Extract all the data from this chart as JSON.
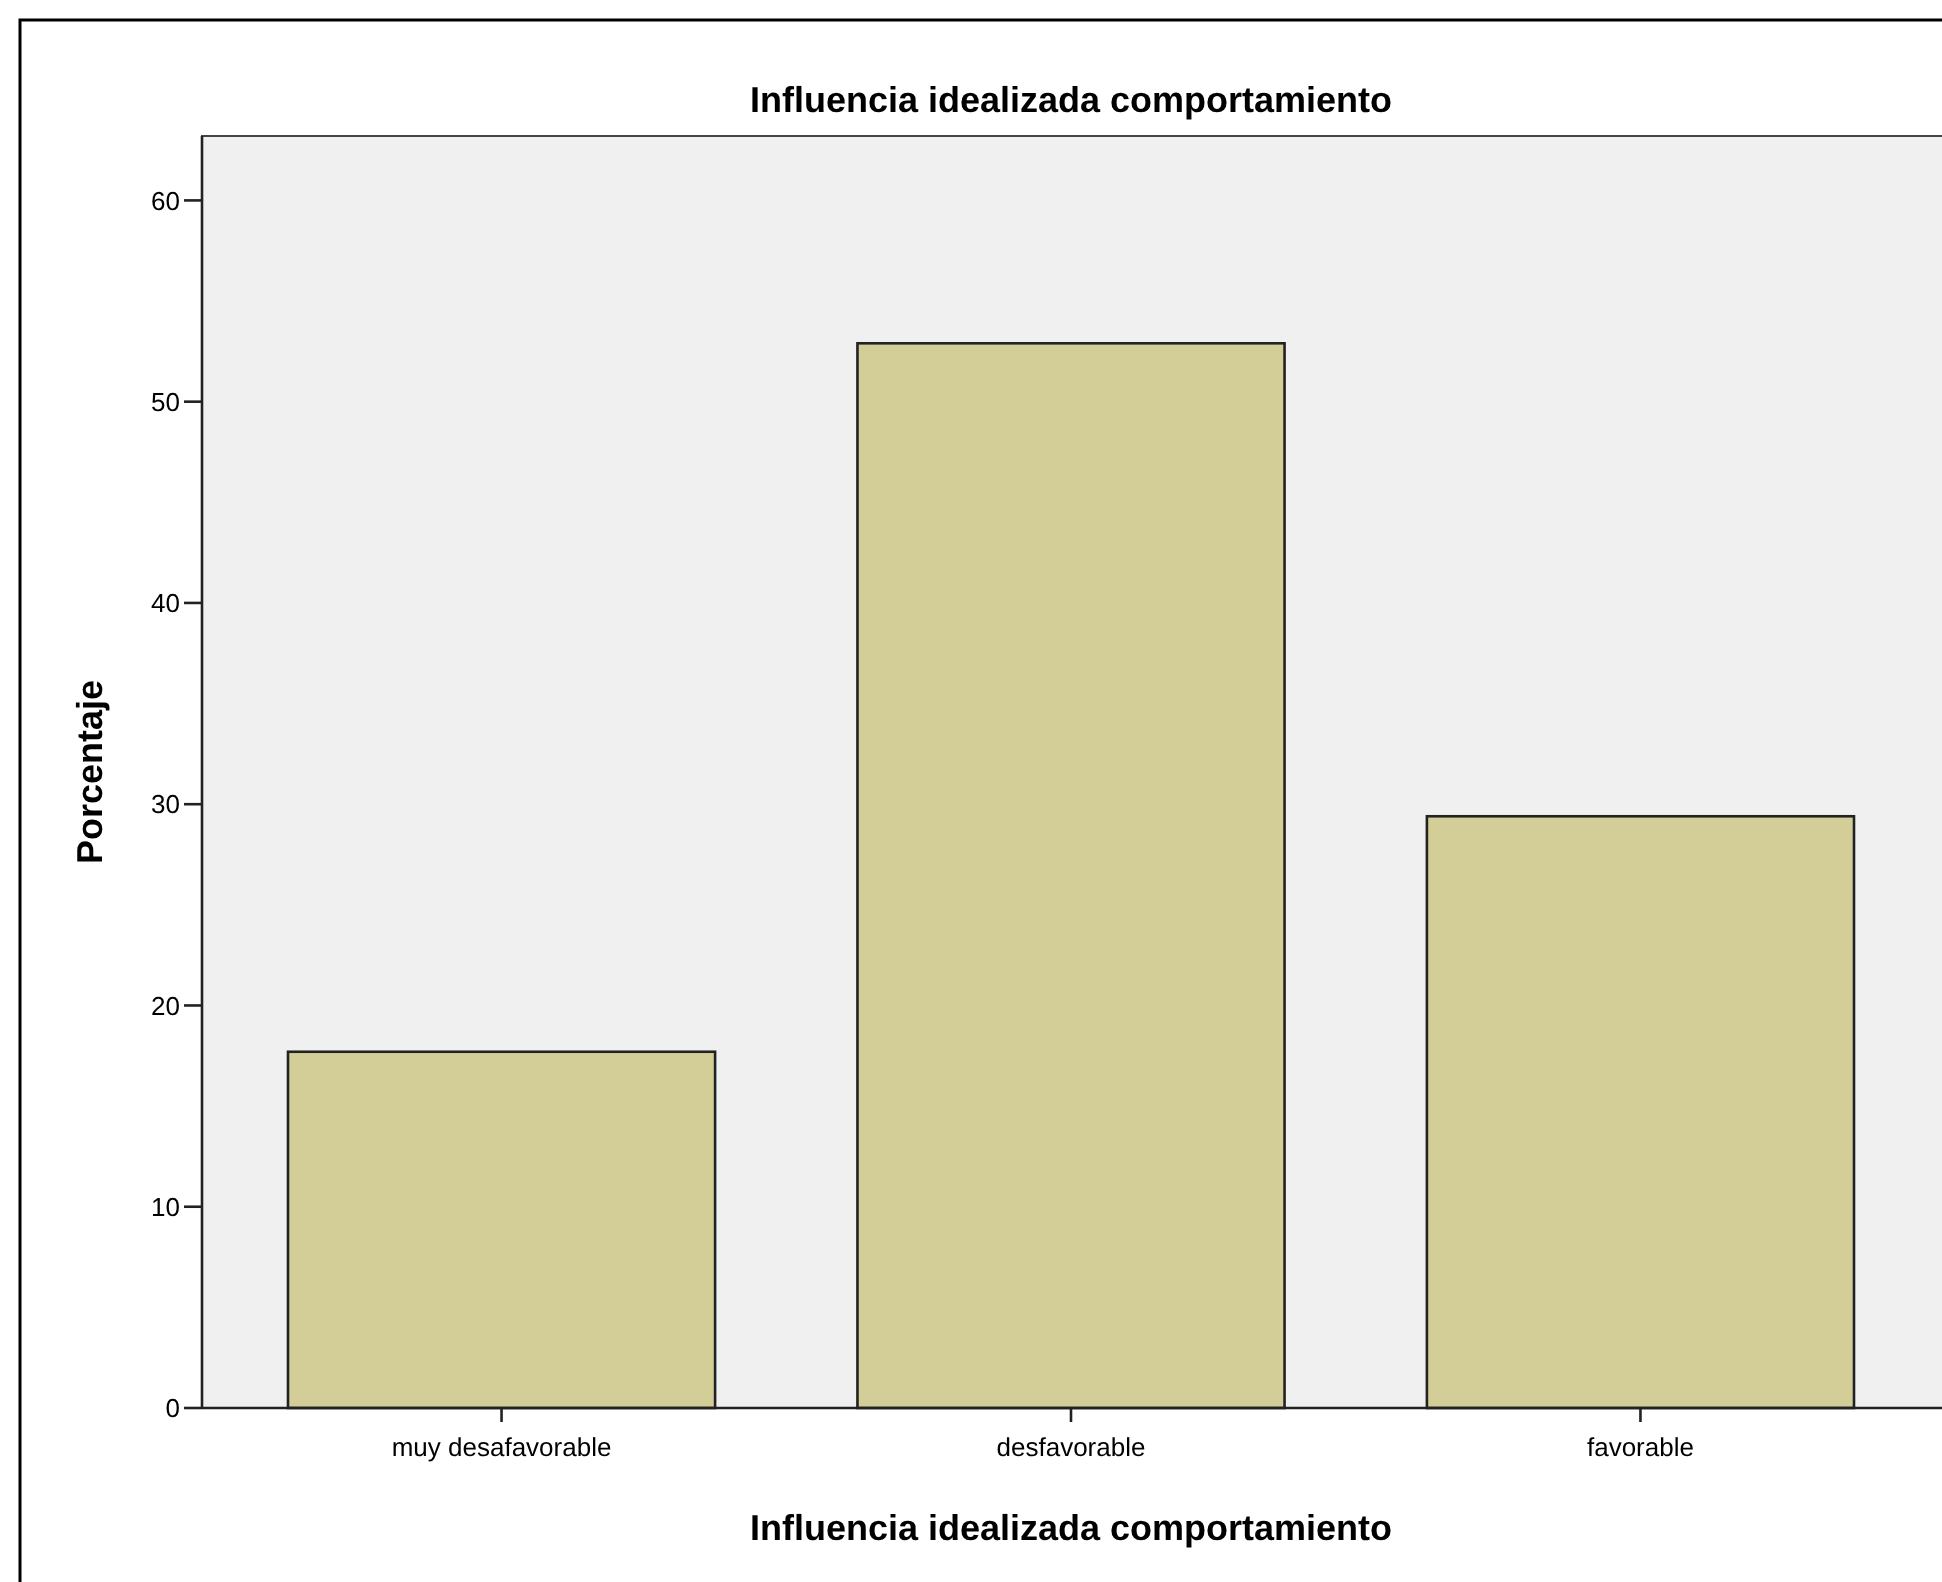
{
  "chart_data": {
    "type": "bar",
    "title": "Influencia idealizada comportamiento",
    "xlabel": "Influencia idealizada comportamiento",
    "ylabel": "Porcentaje",
    "categories": [
      "muy desafavorable",
      "desfavorable",
      "favorable"
    ],
    "values": [
      17.7,
      52.9,
      29.4
    ],
    "color": "#d3ce98",
    "ylim": [
      0,
      63.2
    ],
    "yticks": [
      0,
      10,
      20,
      30,
      40,
      50,
      60
    ],
    "grid": false
  }
}
